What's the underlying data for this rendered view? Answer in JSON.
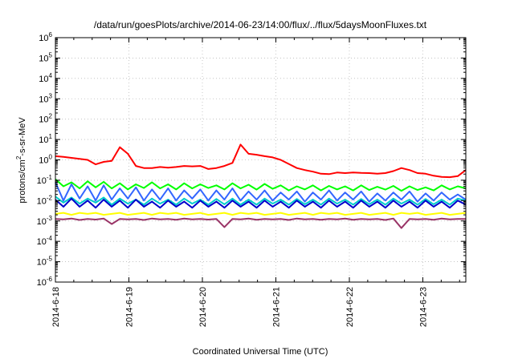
{
  "chart_data": {
    "type": "line",
    "title": "/data/run/goesPlots/archive/2014-06-23/14:00/flux/../flux/5daysMoonFluxes.txt",
    "xlabel": "Coordinated Universal Time (UTC)",
    "ylabel_parts": [
      "protons/cm",
      "2",
      "-s-sr-MeV"
    ],
    "yscale": "log",
    "ylim_exp": [
      -6,
      6
    ],
    "xlim": [
      "2014-06-18",
      "2014-06-23 14:00"
    ],
    "xticks": [
      "2014-6-18",
      "2014-6-19",
      "2014-6-20",
      "2014-6-21",
      "2014-6-22",
      "2014-6-23"
    ],
    "grid": true,
    "series": [
      {
        "color": "#ff0000",
        "values_log10": [
          0.18,
          0.15,
          0.1,
          0.05,
          0.0,
          -0.22,
          -0.1,
          -0.05,
          0.62,
          0.3,
          -0.3,
          -0.4,
          -0.4,
          -0.35,
          -0.38,
          -0.35,
          -0.3,
          -0.32,
          -0.3,
          -0.45,
          -0.4,
          -0.3,
          -0.15,
          0.75,
          0.3,
          0.25,
          0.18,
          0.12,
          0.0,
          -0.2,
          -0.4,
          -0.5,
          -0.58,
          -0.68,
          -0.7,
          -0.62,
          -0.65,
          -0.62,
          -0.64,
          -0.65,
          -0.68,
          -0.65,
          -0.55,
          -0.4,
          -0.5,
          -0.65,
          -0.68,
          -0.78,
          -0.84,
          -0.85,
          -0.8,
          -0.5
        ]
      },
      {
        "color": "#00ff00",
        "values_log10": [
          -0.95,
          -1.3,
          -1.1,
          -1.4,
          -1.05,
          -1.35,
          -1.08,
          -1.4,
          -1.15,
          -1.45,
          -1.2,
          -1.38,
          -1.1,
          -1.4,
          -1.2,
          -1.45,
          -1.15,
          -1.4,
          -1.2,
          -1.38,
          -1.25,
          -1.45,
          -1.15,
          -1.4,
          -1.22,
          -1.46,
          -1.18,
          -1.42,
          -1.25,
          -1.5,
          -1.3,
          -1.45,
          -1.25,
          -1.5,
          -1.28,
          -1.45,
          -1.3,
          -1.5,
          -1.25,
          -1.48,
          -1.32,
          -1.46,
          -1.28,
          -1.52,
          -1.3,
          -1.48,
          -1.35,
          -1.5,
          -1.25,
          -1.45,
          -1.3,
          -1.4
        ]
      },
      {
        "color": "#3366ff",
        "values_log10": [
          -1.1,
          -2.0,
          -1.2,
          -1.9,
          -1.3,
          -2.0,
          -1.25,
          -1.95,
          -1.4,
          -1.9,
          -1.35,
          -2.0,
          -1.45,
          -1.95,
          -1.4,
          -2.0,
          -1.5,
          -1.9,
          -1.45,
          -2.0,
          -1.5,
          -1.95,
          -1.4,
          -2.0,
          -1.55,
          -1.95,
          -1.5,
          -2.0,
          -1.6,
          -1.95,
          -1.55,
          -2.05,
          -1.6,
          -1.95,
          -1.5,
          -2.0,
          -1.6,
          -1.95,
          -1.55,
          -2.05,
          -1.65,
          -2.0,
          -1.6,
          -1.95,
          -1.55,
          -2.05,
          -1.65,
          -2.0,
          -1.6,
          -1.95,
          -1.7,
          -1.95
        ]
      },
      {
        "color": "#00cccc",
        "values_log10": [
          -1.8,
          -2.1,
          -1.85,
          -2.15,
          -1.9,
          -2.1,
          -1.85,
          -2.2,
          -1.9,
          -2.15,
          -1.95,
          -2.2,
          -1.9,
          -2.15,
          -1.95,
          -2.2,
          -1.9,
          -2.15,
          -1.95,
          -2.2,
          -1.92,
          -2.18,
          -1.9,
          -2.2,
          -1.95,
          -2.2,
          -1.9,
          -2.15,
          -1.95,
          -2.2,
          -1.92,
          -2.18,
          -1.95,
          -2.2,
          -1.9,
          -2.15,
          -1.95,
          -2.2,
          -1.92,
          -2.18,
          -1.95,
          -2.2,
          -1.9,
          -2.15,
          -1.95,
          -2.2,
          -1.92,
          -2.18,
          -1.95,
          -2.2,
          -1.9,
          -2.0
        ]
      },
      {
        "color": "#0000cc",
        "values_log10": [
          -1.95,
          -2.3,
          -1.9,
          -2.3,
          -2.0,
          -2.35,
          -1.95,
          -2.3,
          -2.0,
          -2.35,
          -1.95,
          -2.3,
          -2.05,
          -2.35,
          -2.0,
          -2.3,
          -2.05,
          -2.35,
          -2.0,
          -2.3,
          -2.05,
          -2.35,
          -2.0,
          -2.3,
          -2.05,
          -2.35,
          -2.0,
          -2.3,
          -2.05,
          -2.35,
          -2.0,
          -2.3,
          -2.05,
          -2.35,
          -2.0,
          -2.3,
          -2.05,
          -2.35,
          -2.0,
          -2.3,
          -2.05,
          -2.35,
          -2.0,
          -2.3,
          -2.05,
          -2.35,
          -2.0,
          -2.3,
          -2.05,
          -2.35,
          -2.0,
          -2.2
        ]
      },
      {
        "color": "#ffff00",
        "values_log10": [
          -2.65,
          -2.6,
          -2.7,
          -2.6,
          -2.65,
          -2.6,
          -2.7,
          -2.65,
          -2.6,
          -2.7,
          -2.65,
          -2.6,
          -2.7,
          -2.6,
          -2.65,
          -2.6,
          -2.7,
          -2.65,
          -2.6,
          -2.7,
          -2.65,
          -2.6,
          -2.7,
          -2.6,
          -2.65,
          -2.6,
          -2.7,
          -2.65,
          -2.6,
          -2.7,
          -2.65,
          -2.6,
          -2.7,
          -2.6,
          -2.65,
          -2.6,
          -2.7,
          -2.65,
          -2.6,
          -2.7,
          -2.65,
          -2.6,
          -2.7,
          -2.6,
          -2.65,
          -2.6,
          -2.7,
          -2.65,
          -2.6,
          -2.7,
          -2.65,
          -2.6
        ]
      },
      {
        "color": "#993366",
        "values_log10": [
          -2.9,
          -2.92,
          -2.88,
          -2.95,
          -2.9,
          -2.93,
          -2.88,
          -3.15,
          -2.9,
          -2.92,
          -2.9,
          -2.95,
          -2.88,
          -2.92,
          -2.9,
          -2.94,
          -2.88,
          -2.92,
          -2.9,
          -2.93,
          -2.9,
          -3.3,
          -2.9,
          -2.92,
          -2.88,
          -2.94,
          -2.9,
          -2.92,
          -2.9,
          -2.95,
          -2.88,
          -2.92,
          -2.9,
          -2.94,
          -2.9,
          -2.92,
          -2.88,
          -2.94,
          -2.9,
          -2.92,
          -2.9,
          -2.95,
          -2.88,
          -3.35,
          -2.9,
          -2.92,
          -2.9,
          -2.94,
          -2.88,
          -2.92,
          -2.9,
          -2.9
        ]
      }
    ]
  }
}
